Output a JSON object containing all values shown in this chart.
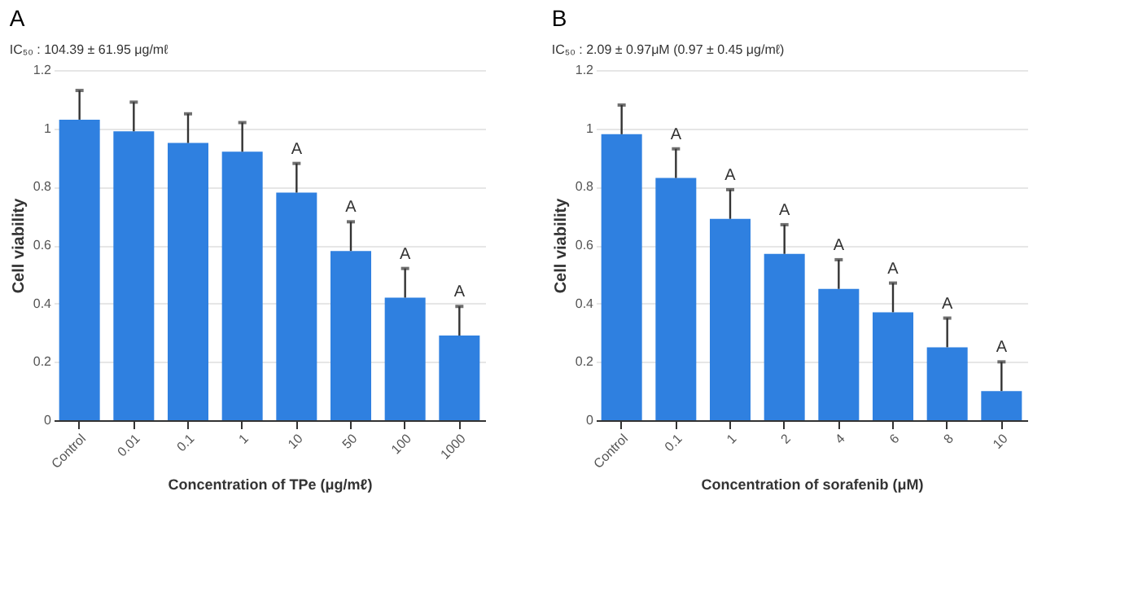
{
  "chart_data": [
    {
      "type": "bar",
      "title": "A",
      "subtitle": "IC₅₀ : 104.39 ± 61.95 μg/mℓ",
      "xlabel": "Concentration of TPe (μg/mℓ)",
      "ylabel": "Cell viability",
      "categories": [
        "Control",
        "0.01",
        "0.1",
        "1",
        "10",
        "50",
        "100",
        "1000"
      ],
      "values": [
        1.03,
        0.99,
        0.95,
        0.92,
        0.78,
        0.58,
        0.42,
        0.29
      ],
      "errors": [
        [
          1.03,
          1.13
        ],
        [
          0.99,
          1.09
        ],
        [
          0.95,
          1.05
        ],
        [
          0.92,
          1.02
        ],
        [
          0.78,
          0.88
        ],
        [
          0.58,
          0.68
        ],
        [
          0.42,
          0.52
        ],
        [
          0.29,
          0.39
        ]
      ],
      "color": "#2f80e0",
      "ylim": [
        0,
        1.2
      ],
      "yticks": [
        0,
        0.2,
        0.4,
        0.6,
        0.8,
        1,
        1.2
      ],
      "grid": "y",
      "annotations": [
        {
          "text": "A",
          "x": "10",
          "y": 0.88
        },
        {
          "text": "A",
          "x": "50",
          "y": 0.68
        },
        {
          "text": "A",
          "x": "100",
          "y": 0.52
        },
        {
          "text": "A",
          "x": "1000",
          "y": 0.39
        }
      ]
    },
    {
      "type": "bar",
      "title": "B",
      "subtitle": "IC₅₀ : 2.09 ± 0.97μM  (0.97 ± 0.45 μg/mℓ)",
      "xlabel": "Concentration of sorafenib (μM)",
      "ylabel": "Cell viability",
      "categories": [
        "Control",
        "0.1",
        "1",
        "2",
        "4",
        "6",
        "8",
        "10"
      ],
      "values": [
        0.98,
        0.83,
        0.69,
        0.57,
        0.45,
        0.37,
        0.25,
        0.1
      ],
      "errors": [
        [
          0.98,
          1.08
        ],
        [
          0.83,
          0.93
        ],
        [
          0.69,
          0.79
        ],
        [
          0.57,
          0.67
        ],
        [
          0.45,
          0.55
        ],
        [
          0.37,
          0.47
        ],
        [
          0.25,
          0.35
        ],
        [
          0.1,
          0.2
        ]
      ],
      "color": "#2f80e0",
      "ylim": [
        0,
        1.2
      ],
      "yticks": [
        0,
        0.2,
        0.4,
        0.6,
        0.8,
        1,
        1.2
      ],
      "grid": "y",
      "annotations": [
        {
          "text": "A",
          "x": "0.1",
          "y": 0.93
        },
        {
          "text": "A",
          "x": "1",
          "y": 0.79
        },
        {
          "text": "A",
          "x": "2",
          "y": 0.67
        },
        {
          "text": "A",
          "x": "4",
          "y": 0.55
        },
        {
          "text": "A",
          "x": "6",
          "y": 0.47
        },
        {
          "text": "A",
          "x": "8",
          "y": 0.35
        },
        {
          "text": "A",
          "x": "10",
          "y": 0.2
        }
      ]
    }
  ]
}
